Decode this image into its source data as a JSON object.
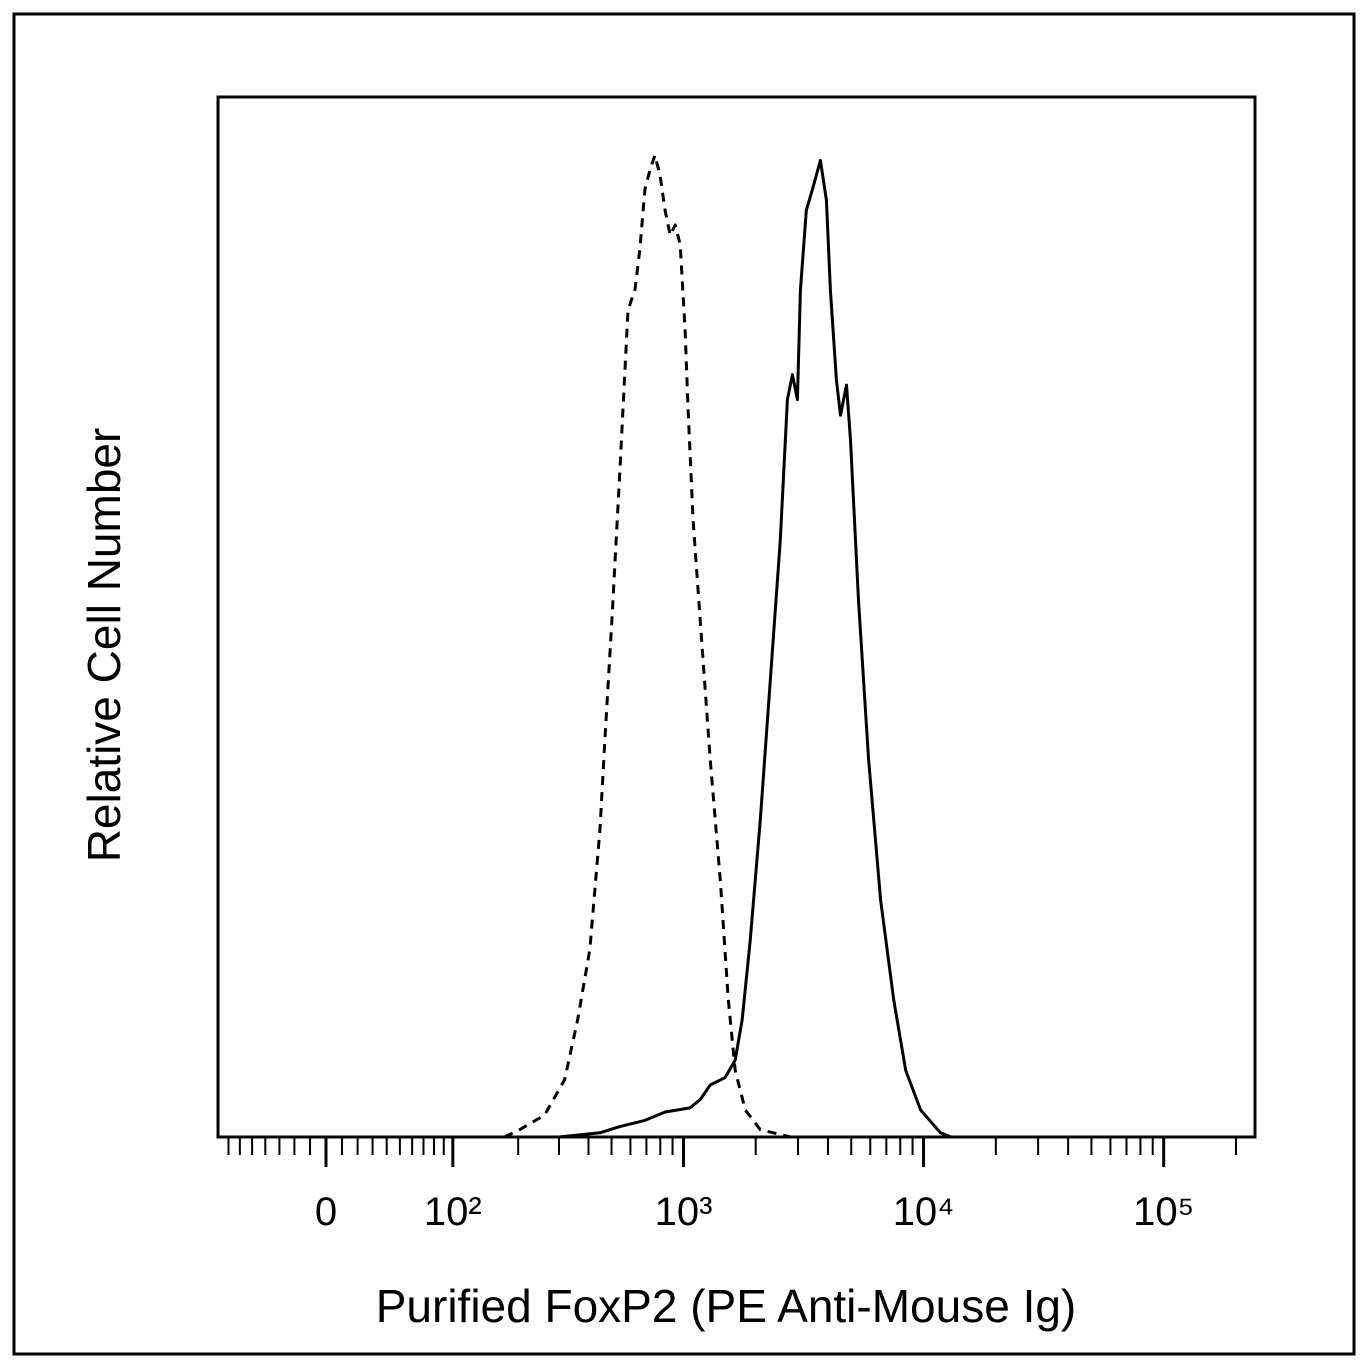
{
  "chart_data": {
    "type": "line",
    "xlabel": "Purified FoxP2 (PE Anti-Mouse Ig)",
    "ylabel": "Relative Cell Number",
    "xscale": "biexponential",
    "xlim": [
      -80,
      240000
    ],
    "ylim": [
      0,
      100
    ],
    "xticks": [
      0,
      {
        "value": 100,
        "label": "10²"
      },
      {
        "value": 1000,
        "label": "10³"
      },
      {
        "value": 10000,
        "label": "10⁴"
      },
      {
        "value": 100000,
        "label": "10⁵"
      }
    ],
    "xminorticks": [
      -70,
      -60,
      -50,
      -40,
      -30,
      -20,
      -10,
      10,
      20,
      30,
      40,
      50,
      60,
      70,
      80,
      90,
      200,
      300,
      400,
      500,
      600,
      700,
      800,
      900,
      2000,
      3000,
      4000,
      5000,
      6000,
      7000,
      8000,
      9000,
      20000,
      30000,
      40000,
      50000,
      60000,
      70000,
      80000,
      90000,
      200000
    ],
    "series": [
      {
        "line_style": "dashed",
        "color": "#000000",
        "x": [
          174,
          203,
          260,
          317,
          360,
          405,
          447,
          469,
          502,
          542,
          586,
          627,
          657,
          690,
          725,
          760,
          798,
          838,
          880,
          923,
          969,
          1016,
          1045,
          1097,
          1174,
          1293,
          1424,
          1537,
          1643,
          1810,
          2090,
          2790,
          12000
        ],
        "values": [
          0,
          0.7,
          2.1,
          5.5,
          11.3,
          18,
          29.5,
          38.2,
          49.7,
          64.1,
          79.5,
          81.5,
          85.3,
          91.1,
          93,
          94.4,
          92.5,
          89.1,
          86.7,
          87.7,
          85.8,
          77.6,
          69.9,
          59.3,
          49.7,
          36.3,
          24.7,
          13.2,
          6.4,
          2.6,
          0.7,
          0,
          0
        ]
      },
      {
        "line_style": "solid",
        "color": "#000000",
        "x": [
          300,
          447,
          542,
          690,
          838,
          1066,
          1174,
          1293,
          1490,
          1643,
          1757,
          1898,
          2090,
          2300,
          2532,
          2710,
          2843,
          2983,
          3070,
          3250,
          3445,
          3718,
          3940,
          4095,
          4337,
          4510,
          4777,
          4966,
          5362,
          5903,
          6625,
          7510,
          8430,
          9720,
          11770,
          13000
        ],
        "values": [
          0,
          0.4,
          1,
          1.6,
          2.4,
          2.8,
          3.6,
          5,
          5.7,
          7.4,
          11.3,
          18.9,
          30.5,
          43.9,
          57.4,
          70.9,
          73.3,
          70.9,
          81.4,
          89.1,
          91.1,
          93.9,
          90.1,
          81.4,
          72.8,
          69.4,
          72.3,
          67,
          51.6,
          36.3,
          22.8,
          13.2,
          6.4,
          2.6,
          0.4,
          0
        ]
      }
    ]
  }
}
